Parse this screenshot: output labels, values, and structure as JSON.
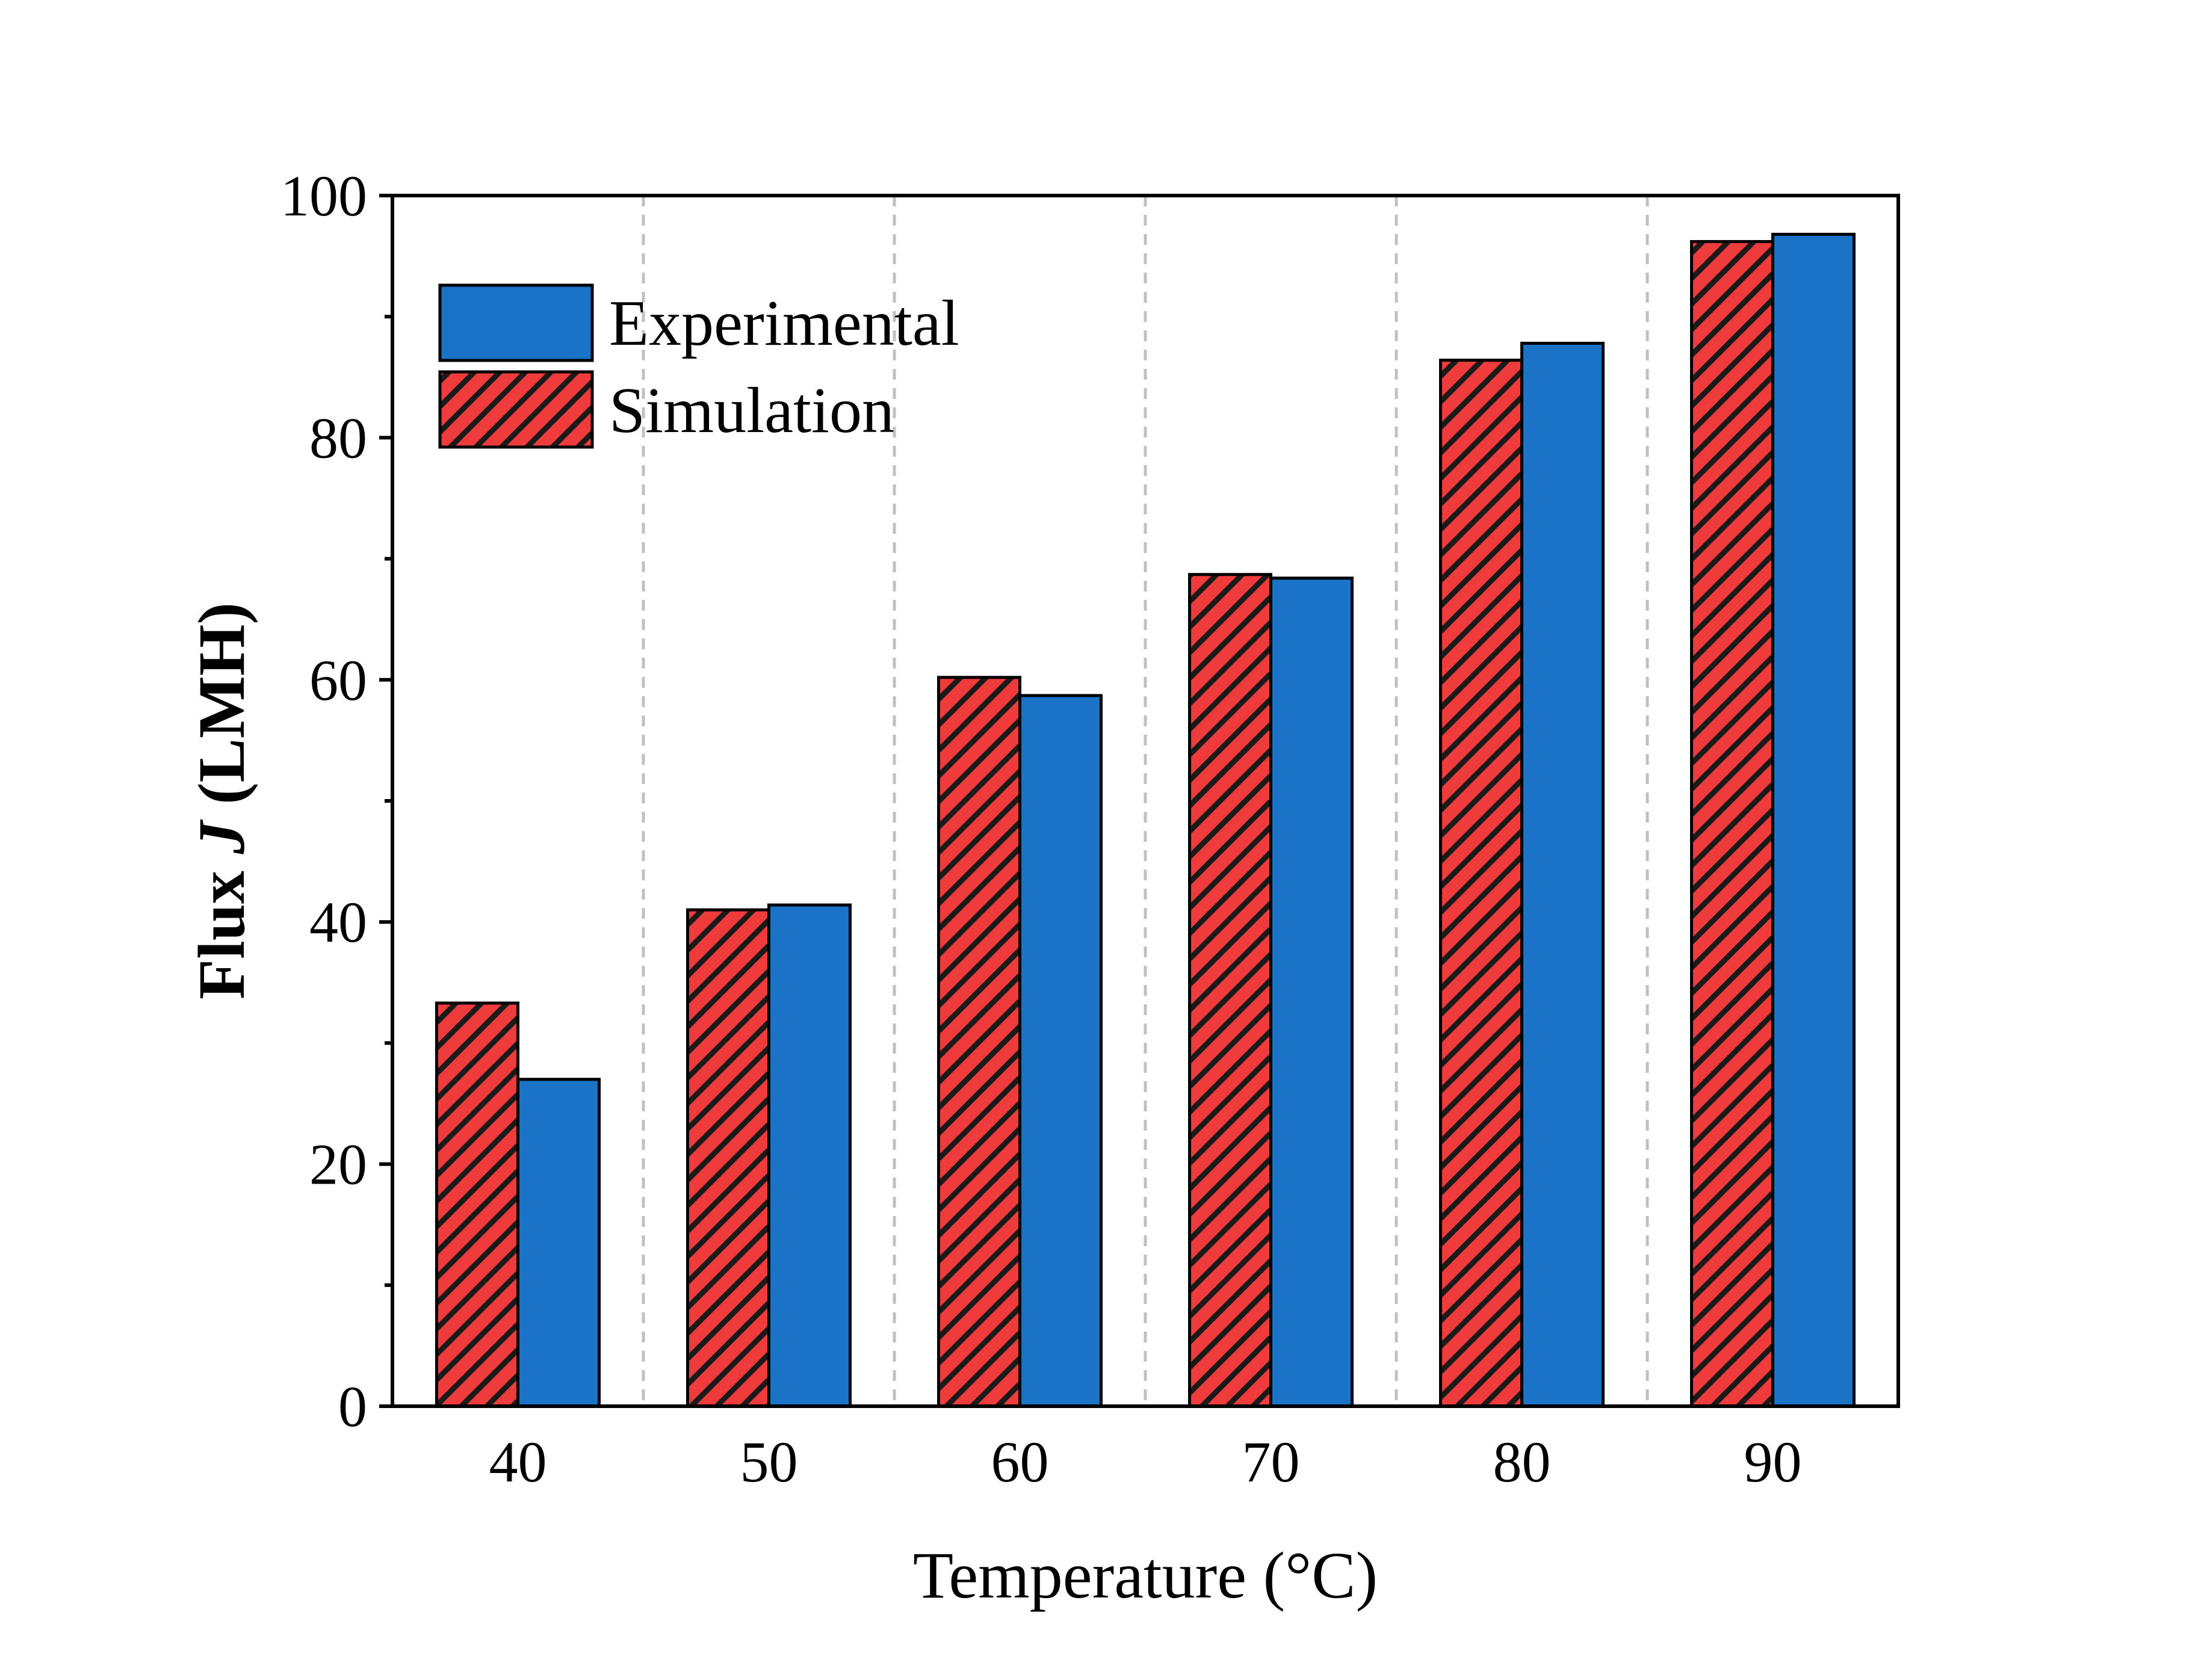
{
  "chart_data": {
    "type": "bar",
    "title": "",
    "xlabel": "Temperature (°C)",
    "ylabel": {
      "prefix": "Flux ",
      "symbol": "J",
      "suffix": " (LMH)"
    },
    "categories": [
      "40",
      "50",
      "60",
      "70",
      "80",
      "90"
    ],
    "ylim": [
      0,
      100
    ],
    "yticks": [
      "0",
      "20",
      "40",
      "60",
      "80",
      "100"
    ],
    "grid": "vertical dashed separators between categories",
    "legend_position": "top-left",
    "series": [
      {
        "name": "Simulation",
        "values": [
          33.3,
          41.0,
          60.2,
          68.7,
          86.4,
          96.2
        ],
        "color": "#ef3b3b",
        "pattern": "hatched"
      },
      {
        "name": "Experimental",
        "values": [
          27.0,
          41.4,
          58.7,
          68.4,
          87.8,
          96.8
        ],
        "color": "#1a73c6",
        "pattern": "solid"
      }
    ],
    "legend_order": [
      "Experimental",
      "Simulation"
    ]
  }
}
